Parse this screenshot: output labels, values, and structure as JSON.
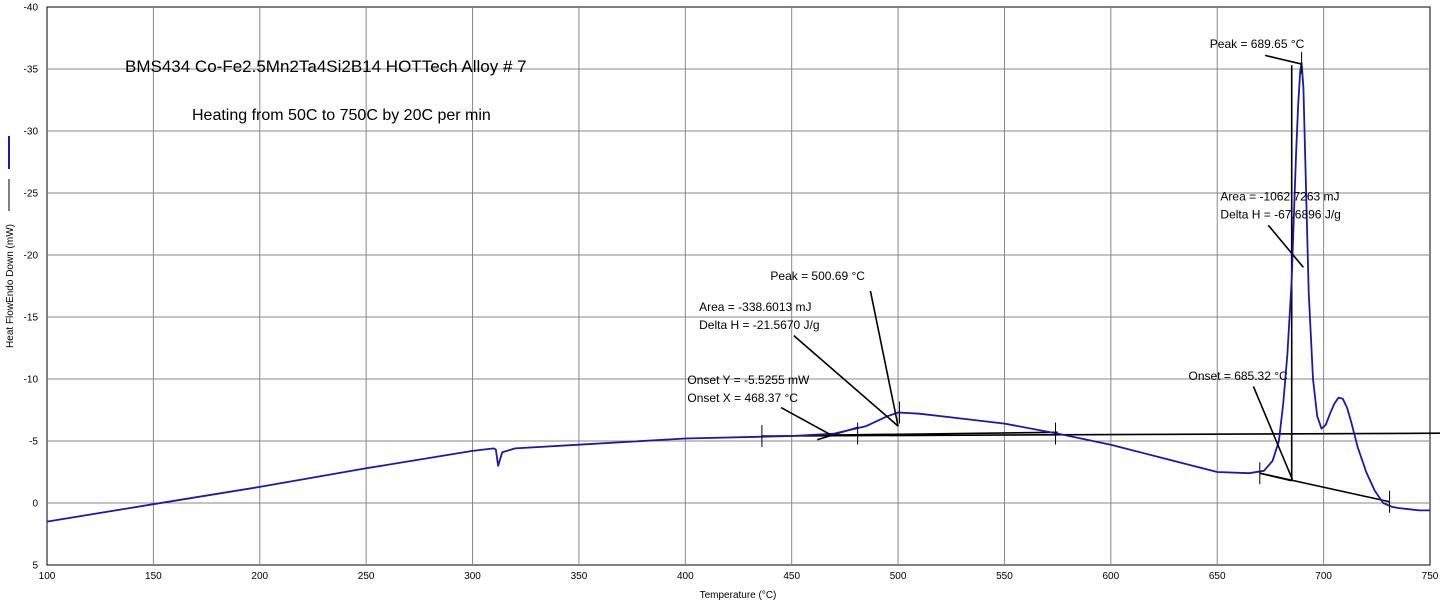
{
  "chart_data": {
    "type": "line",
    "title": "BMS434 Co-Fe2.5Mn2Ta4Si2B14 HOTTech Alloy # 7",
    "subtitle": "Heating from 50C to 750C by 20C per min",
    "xlabel": "Temperature (°C)",
    "ylabel": "Heat FlowEndo Down (mW)",
    "xlim": [
      100,
      750
    ],
    "ylim": [
      5,
      -40
    ],
    "y_inverted": true,
    "grid": true,
    "x_ticks": [
      100,
      150,
      200,
      250,
      300,
      350,
      400,
      450,
      500,
      550,
      600,
      650,
      700,
      750
    ],
    "y_ticks": [
      -40,
      -35,
      -30,
      -25,
      -20,
      -15,
      -10,
      -5,
      0,
      5
    ],
    "series": [
      {
        "color": "#1a1aa6",
        "x": [
          100,
          150,
          200,
          250,
          300,
          310,
          311,
          312,
          314,
          320,
          350,
          400,
          450,
          470,
          485,
          495,
          500,
          510,
          525,
          550,
          575,
          600,
          625,
          650,
          665,
          672,
          676,
          679,
          681,
          683,
          685,
          686,
          687,
          688,
          689,
          689.65,
          690.5,
          691.5,
          693,
          695,
          697,
          699,
          701,
          703,
          705,
          707,
          709,
          711,
          713,
          716,
          720,
          724,
          728,
          732,
          735,
          740,
          745,
          750
        ],
        "y": [
          1.5,
          0.1,
          -1.3,
          -2.8,
          -4.2,
          -4.4,
          -4.3,
          -3.0,
          -4.1,
          -4.4,
          -4.7,
          -5.2,
          -5.4,
          -5.6,
          -6.2,
          -7.0,
          -7.3,
          -7.2,
          -6.9,
          -6.4,
          -5.6,
          -4.7,
          -3.6,
          -2.5,
          -2.4,
          -2.6,
          -3.4,
          -5.0,
          -8.0,
          -12.0,
          -18.0,
          -23.0,
          -28.0,
          -32.0,
          -34.8,
          -35.5,
          -33.5,
          -27.0,
          -17.0,
          -10.0,
          -7.0,
          -6.0,
          -6.3,
          -7.2,
          -8.0,
          -8.5,
          -8.4,
          -7.7,
          -6.5,
          -4.5,
          -2.5,
          -1.0,
          0.0,
          0.3,
          0.4,
          0.5,
          0.6,
          0.6
        ]
      }
    ],
    "analysis_lines": [
      {
        "x": [
          436,
          858
        ],
        "y": [
          -5.4,
          -5.7
        ],
        "_px": 0
      },
      {
        "x": [
          455,
          575
        ],
        "y": [
          -5.45,
          -5.7
        ]
      },
      {
        "x": [
          462,
          481
        ],
        "y": [
          -5.1,
          -6.1
        ]
      },
      {
        "x": [
          685,
          685
        ],
        "y": [
          -1.8,
          -35.3
        ]
      },
      {
        "x": [
          670,
          731
        ],
        "y": [
          -2.4,
          -0.1
        ]
      },
      {
        "x": [
          670,
          685
        ],
        "y": [
          -2.4,
          -1.8
        ]
      }
    ],
    "tick_marks": [
      {
        "x": 436,
        "y": -5.4
      },
      {
        "x": 481,
        "y": -5.6
      },
      {
        "x": 500.69,
        "y": -7.3
      },
      {
        "x": 574,
        "y": -5.6
      },
      {
        "x": 670,
        "y": -2.4
      },
      {
        "x": 689.65,
        "y": -35.5
      },
      {
        "x": 731,
        "y": -0.1
      }
    ],
    "annotations": [
      {
        "lines": [
          "Peak = 689.65 °C"
        ],
        "text_at": {
          "x": 646.5,
          "y": -36.7
        },
        "pointer": {
          "x": [
            672.5,
            689.65
          ],
          "y": [
            -36.1,
            -35.4
          ]
        }
      },
      {
        "lines": [
          "Area = -1062.7263 mJ",
          "Delta H = -67.6896 J/g"
        ],
        "text_at": {
          "x": 651.5,
          "y": -24.4
        },
        "pointer": {
          "x": [
            674,
            690.5
          ],
          "y": [
            -22.4,
            -19.0
          ]
        }
      },
      {
        "lines": [
          "Peak = 500.69 °C"
        ],
        "text_at": {
          "x": 440,
          "y": -18.0
        },
        "pointer": {
          "x": [
            487,
            500
          ],
          "y": [
            -17.1,
            -6.2
          ]
        }
      },
      {
        "lines": [
          "Area = -338.6013 mJ",
          "Delta H = -21.5670 J/g"
        ],
        "text_at": {
          "x": 406.5,
          "y": -15.5
        },
        "pointer": {
          "x": [
            451,
            500
          ],
          "y": [
            -13.5,
            -6.2
          ]
        }
      },
      {
        "lines": [
          "Onset Y = -5.5255 mW",
          "Onset X = 468.37 °C"
        ],
        "text_at": {
          "x": 401,
          "y": -9.6
        },
        "pointer": {
          "x": [
            445,
            468.37
          ],
          "y": [
            -7.7,
            -5.5
          ]
        }
      },
      {
        "lines": [
          "Onset = 685.32 °C"
        ],
        "text_at": {
          "x": 636.5,
          "y": -9.9
        },
        "pointer": {
          "x": [
            667,
            685.32
          ],
          "y": [
            -9.4,
            -1.9
          ]
        }
      }
    ]
  }
}
